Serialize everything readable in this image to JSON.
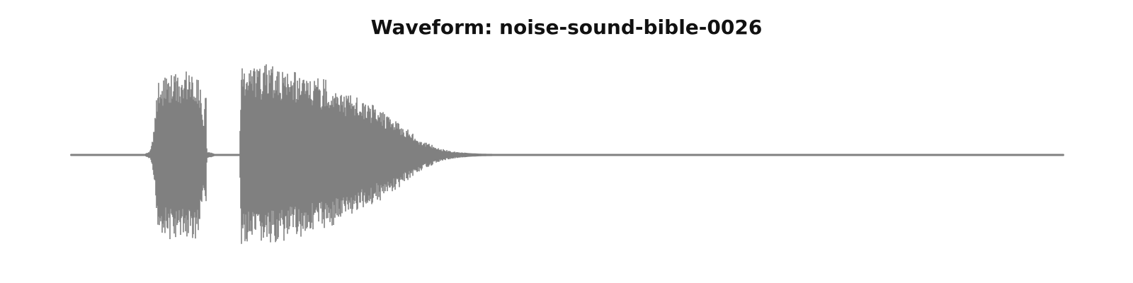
{
  "chart_data": {
    "type": "area",
    "title": "Waveform: noise-sound-bible-0026",
    "xlabel": "",
    "ylabel": "",
    "ylim": [
      -1.0,
      1.0
    ],
    "grid": false,
    "axes_visible": false,
    "colors": {
      "waveform": "#808080",
      "background": "#ffffff"
    },
    "series": [
      {
        "envelope_x": [
          0.0,
          0.075,
          0.08,
          0.082,
          0.084,
          0.086,
          0.088,
          0.09,
          0.095,
          0.1,
          0.104,
          0.108,
          0.112,
          0.116,
          0.12,
          0.124,
          0.128,
          0.13,
          0.132,
          0.134,
          0.136,
          0.1365,
          0.137,
          0.145,
          0.15,
          0.16,
          0.17,
          0.1715,
          0.172,
          0.1725,
          0.173,
          0.174,
          0.176,
          0.178,
          0.18,
          0.184,
          0.188,
          0.192,
          0.196,
          0.2,
          0.204,
          0.208,
          0.212,
          0.216,
          0.22,
          0.224,
          0.228,
          0.232,
          0.236,
          0.24,
          0.244,
          0.248,
          0.252,
          0.256,
          0.26,
          0.264,
          0.268,
          0.272,
          0.276,
          0.28,
          0.284,
          0.288,
          0.292,
          0.296,
          0.3,
          0.304,
          0.308,
          0.312,
          0.316,
          0.32,
          0.324,
          0.328,
          0.332,
          0.336,
          0.34,
          0.344,
          0.348,
          0.352,
          0.356,
          0.36,
          0.364,
          0.368,
          0.372,
          0.376,
          0.38,
          0.384,
          0.388,
          0.392,
          0.396,
          0.4,
          0.41,
          0.42,
          0.45,
          0.5,
          0.6,
          0.7,
          0.8,
          0.9,
          1.0
        ],
        "envelope_max": [
          0.01,
          0.01,
          0.05,
          0.15,
          0.3,
          0.55,
          0.8,
          0.8,
          0.85,
          0.9,
          0.88,
          0.92,
          0.84,
          0.9,
          0.88,
          0.9,
          0.85,
          0.8,
          0.55,
          0.35,
          0.78,
          0.5,
          0.04,
          0.01,
          0.01,
          0.01,
          0.01,
          0.9,
          0.97,
          0.95,
          0.88,
          0.96,
          0.92,
          0.98,
          0.94,
          1.0,
          0.97,
          0.95,
          0.99,
          0.92,
          0.96,
          0.94,
          0.9,
          0.93,
          0.89,
          0.92,
          0.86,
          0.9,
          0.84,
          0.88,
          0.8,
          0.84,
          0.78,
          0.83,
          0.74,
          0.78,
          0.7,
          0.75,
          0.66,
          0.7,
          0.62,
          0.64,
          0.58,
          0.6,
          0.52,
          0.56,
          0.48,
          0.5,
          0.44,
          0.46,
          0.4,
          0.38,
          0.34,
          0.3,
          0.27,
          0.24,
          0.2,
          0.17,
          0.15,
          0.13,
          0.11,
          0.09,
          0.07,
          0.06,
          0.05,
          0.04,
          0.035,
          0.03,
          0.025,
          0.02,
          0.015,
          0.012,
          0.01,
          0.01,
          0.01,
          0.01,
          0.01,
          0.01,
          0.01
        ],
        "envelope_min": [
          -0.01,
          -0.01,
          -0.05,
          -0.15,
          -0.3,
          -0.55,
          -0.82,
          -0.82,
          -0.88,
          -0.92,
          -0.9,
          -0.95,
          -0.86,
          -0.92,
          -0.9,
          -0.93,
          -0.88,
          -0.8,
          -0.55,
          -0.35,
          -0.8,
          -0.5,
          -0.04,
          -0.01,
          -0.01,
          -0.01,
          -0.01,
          -0.9,
          -0.97,
          -0.96,
          -0.9,
          -0.97,
          -0.93,
          -1.0,
          -0.95,
          -0.99,
          -0.97,
          -0.96,
          -0.98,
          -0.93,
          -0.96,
          -0.94,
          -0.9,
          -0.93,
          -0.88,
          -0.91,
          -0.86,
          -0.89,
          -0.83,
          -0.87,
          -0.8,
          -0.84,
          -0.77,
          -0.82,
          -0.74,
          -0.77,
          -0.7,
          -0.74,
          -0.66,
          -0.7,
          -0.62,
          -0.64,
          -0.58,
          -0.6,
          -0.52,
          -0.55,
          -0.48,
          -0.5,
          -0.44,
          -0.46,
          -0.4,
          -0.38,
          -0.34,
          -0.3,
          -0.27,
          -0.24,
          -0.2,
          -0.17,
          -0.15,
          -0.13,
          -0.11,
          -0.09,
          -0.07,
          -0.06,
          -0.05,
          -0.04,
          -0.035,
          -0.03,
          -0.025,
          -0.02,
          -0.015,
          -0.012,
          -0.01,
          -0.01,
          -0.01,
          -0.01,
          -0.01,
          -0.01,
          -0.01
        ]
      }
    ]
  }
}
